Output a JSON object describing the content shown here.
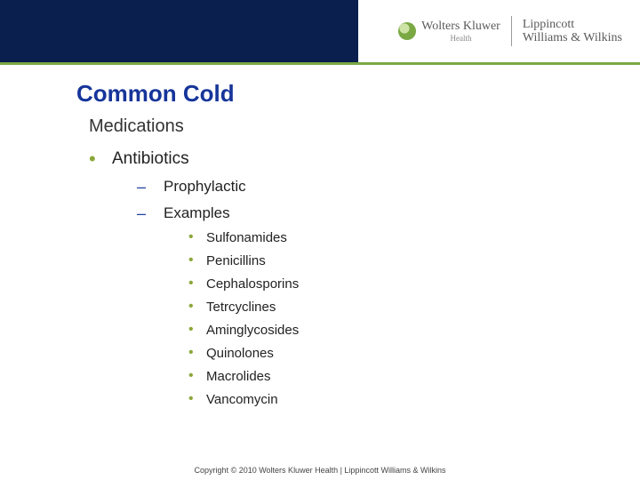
{
  "brand": {
    "wk_name": "Wolters Kluwer",
    "wk_sub": "Health",
    "lww_line1": "Lippincott",
    "lww_line2": "Williams & Wilkins"
  },
  "slide": {
    "title": "Common Cold",
    "subtitle": "Medications",
    "l1_item": "Antibiotics",
    "l2_items": [
      "Prophylactic",
      "Examples"
    ],
    "l3_items": [
      "Sulfonamides",
      "Penicillins",
      "Cephalosporins",
      "Tetrcyclines",
      "Aminglycosides",
      "Quinolones",
      "Macrolides",
      "Vancomycin"
    ]
  },
  "footer": {
    "copyright": "Copyright © 2010 Wolters Kluwer Health | Lippincott Williams & Wilkins"
  },
  "style": {
    "title_color": "#16359a",
    "bullet_green": "#8aa83a",
    "dash_blue": "#1f3fa0",
    "header_navy": "#0a1f4d",
    "accent_green_bar": "#7aa843",
    "background": "#ffffff",
    "brand_text": "#5a5a5a",
    "title_fontsize": 26,
    "subtitle_fontsize": 20,
    "l1_fontsize": 19,
    "l2_fontsize": 17,
    "l3_fontsize": 15,
    "copyright_fontsize": 9
  }
}
